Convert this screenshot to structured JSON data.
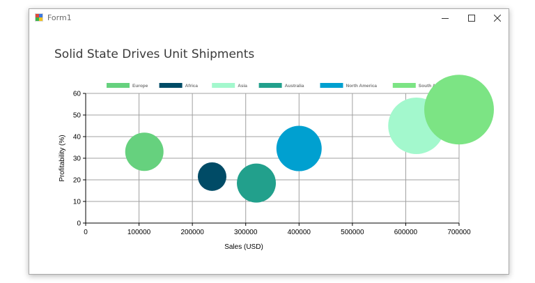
{
  "window": {
    "title": "Form1"
  },
  "chart_data": {
    "type": "bubble",
    "title": "Solid State Drives Unit Shipments",
    "xlabel": "Sales (USD)",
    "ylabel": "Profitability (%)",
    "xlim": [
      0,
      700000
    ],
    "ylim": [
      0,
      60
    ],
    "x_ticks": [
      "0",
      "100000",
      "200000",
      "300000",
      "400000",
      "500000",
      "600000",
      "700000"
    ],
    "y_ticks": [
      "0",
      "10",
      "20",
      "30",
      "40",
      "50",
      "60"
    ],
    "grid": true,
    "legend_position": "top",
    "series": [
      {
        "name": "Europe",
        "color": "#66d17e",
        "x": 110000,
        "y": 33,
        "size": 0.55
      },
      {
        "name": "Africa",
        "color": "#004b66",
        "x": 237000,
        "y": 21.5,
        "size": 0.41
      },
      {
        "name": "Asia",
        "color": "#a3f8cd",
        "x": 620000,
        "y": 45,
        "size": 0.81
      },
      {
        "name": "Australia",
        "color": "#22a08c",
        "x": 320000,
        "y": 18.5,
        "size": 0.56
      },
      {
        "name": "North America",
        "color": "#00a0d0",
        "x": 400000,
        "y": 34.5,
        "size": 0.65
      },
      {
        "name": "South America",
        "color": "#7ce484",
        "x": 700000,
        "y": 52.5,
        "size": 1.0
      }
    ]
  }
}
